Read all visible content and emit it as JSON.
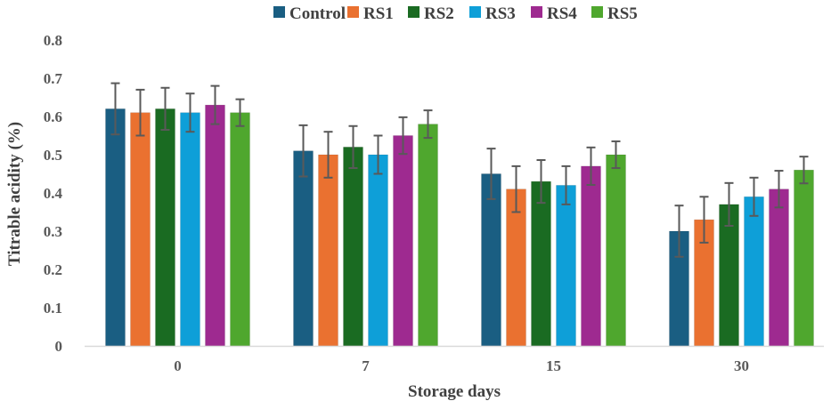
{
  "chart_data": {
    "type": "bar",
    "title": "",
    "xlabel": "Storage days",
    "ylabel": "Titrable acidity (%)",
    "ylim": [
      0,
      0.8
    ],
    "yticks": [
      "0",
      "0.1",
      "0.2",
      "0.3",
      "0.4",
      "0.5",
      "0.6",
      "0.7",
      "0.8"
    ],
    "grid": false,
    "legend_position": "top-center",
    "categories": [
      "0",
      "7",
      "15",
      "30"
    ],
    "series": [
      {
        "name": "Control",
        "color": "#1a5e82",
        "values": [
          0.62,
          0.51,
          0.45,
          0.3
        ],
        "errors": [
          0.067,
          0.067,
          0.066,
          0.067
        ]
      },
      {
        "name": "RS1",
        "color": "#ea7130",
        "values": [
          0.61,
          0.5,
          0.41,
          0.33
        ],
        "errors": [
          0.06,
          0.06,
          0.06,
          0.06
        ]
      },
      {
        "name": "RS2",
        "color": "#1a6b22",
        "values": [
          0.62,
          0.52,
          0.43,
          0.37
        ],
        "errors": [
          0.055,
          0.055,
          0.056,
          0.056
        ]
      },
      {
        "name": "RS3",
        "color": "#0e9fd8",
        "values": [
          0.61,
          0.5,
          0.42,
          0.39
        ],
        "errors": [
          0.05,
          0.05,
          0.05,
          0.05
        ]
      },
      {
        "name": "RS4",
        "color": "#9e2a90",
        "values": [
          0.63,
          0.55,
          0.47,
          0.41
        ],
        "errors": [
          0.05,
          0.048,
          0.049,
          0.048
        ]
      },
      {
        "name": "RS5",
        "color": "#4fa72e",
        "values": [
          0.61,
          0.58,
          0.5,
          0.46
        ],
        "errors": [
          0.035,
          0.036,
          0.035,
          0.035
        ]
      }
    ]
  }
}
